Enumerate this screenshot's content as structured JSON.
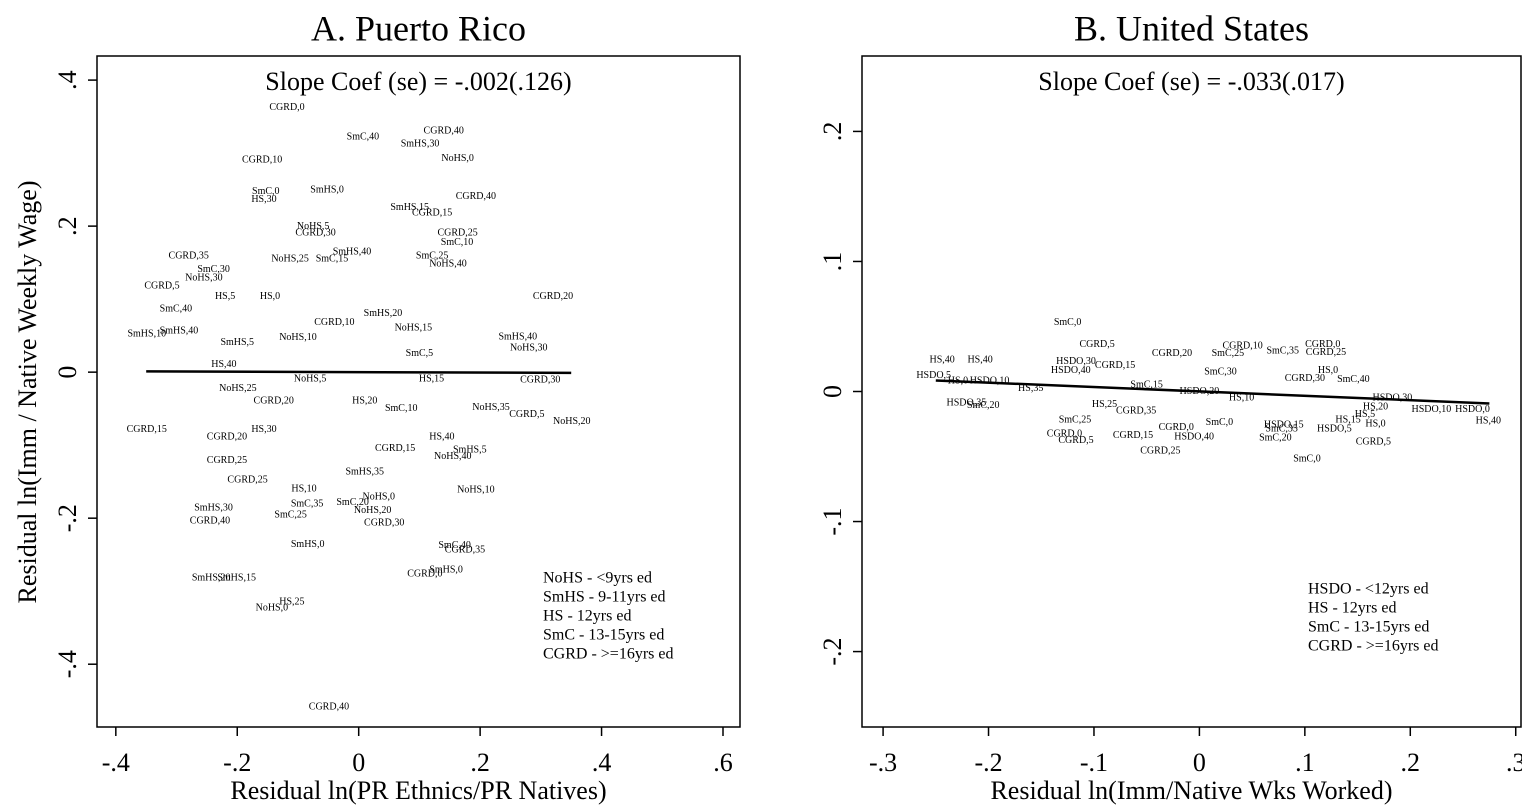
{
  "chart_data": [
    {
      "type": "scatter",
      "title": "A. Puerto Rico",
      "annotation": "Slope Coef (se) = -.002(.126)",
      "xlabel": "Residual ln(PR Ethnics/PR Natives)",
      "ylabel": "Residual ln(Imm / Native Weekly Wage)",
      "xlim": [
        -0.431,
        0.628
      ],
      "ylim": [
        -0.486,
        0.433
      ],
      "xticks": [
        {
          "value": -0.4,
          "label": "-.4"
        },
        {
          "value": -0.2,
          "label": "-.2"
        },
        0,
        {
          "value": 0.2,
          "label": ".2"
        },
        {
          "value": 0.4,
          "label": ".4"
        },
        {
          "value": 0.6,
          "label": ".6"
        }
      ],
      "yticks": [
        {
          "value": 0.4,
          "label": ".4"
        },
        {
          "value": 0.2,
          "label": ".2"
        },
        0,
        {
          "value": -0.2,
          "label": "-.2"
        },
        {
          "value": -0.4,
          "label": "-.4"
        }
      ],
      "labels": [
        "CGRD,0",
        "SmC,40",
        "CGRD,40",
        "SmHS,30",
        "NoHS,0",
        "CGRD,10",
        "SmC,0",
        "HS,30",
        "SmHS,0",
        "CGRD,40",
        "SmHS,15",
        "CGRD,15",
        "NoHS,5",
        "CGRD,30",
        "CGRD,25",
        "SmC,10",
        "CGRD,35",
        "SmHS,40",
        "SmC,25",
        "NoHS,40",
        "NoHS,25",
        "SmC,15",
        "SmC,30",
        "NoHS,30",
        "CGRD,5",
        "HS,5",
        "HS,0",
        "CGRD,20",
        "SmC,40",
        "SmHS,40",
        "SmHS,10",
        "SmHS,40",
        "NoHS,30",
        "CGRD,30",
        "NoHS,35",
        "CGRD,5",
        "NoHS,20",
        "CGRD,15",
        "CGRD,20",
        "HS,30",
        "HS,40",
        "SmHS,5",
        "NoHS,40",
        "CGRD,25",
        "CGRD,25",
        "HS,10",
        "NoHS,10",
        "SmC,35",
        "SmC,20",
        "NoHS,0",
        "SmHS,30",
        "CGRD,40",
        "SmC,25",
        "NoHS,20",
        "CGRD,30",
        "SmHS,0",
        "SmC,40",
        "CGRD,35",
        "CGRD,0",
        "SmHS,0",
        "SmHS,15",
        "SmHS,20",
        "HS,25",
        "NoHS,0",
        "CGRD,40",
        "HS,40",
        "NoHS,25",
        "NoHS,10",
        "SmHS,5",
        "CGRD,10",
        "SmHS,20",
        "NoHS,15",
        "SmC,10",
        "HS,20",
        "NoHS,5",
        "CGRD,15",
        "SmHS,35",
        "HS,15",
        "SmC,5",
        "CGRD,20"
      ],
      "x": [
        -0.118,
        0.007,
        0.14,
        0.101,
        0.163,
        -0.159,
        -0.153,
        -0.156,
        -0.052,
        0.193,
        0.084,
        0.121,
        -0.075,
        -0.071,
        0.163,
        0.162,
        -0.28,
        -0.011,
        0.121,
        0.147,
        -0.113,
        -0.044,
        -0.239,
        -0.255,
        -0.324,
        -0.22,
        -0.146,
        0.32,
        -0.301,
        -0.296,
        -0.349,
        0.262,
        0.28,
        0.299,
        0.218,
        0.277,
        0.351,
        -0.349,
        -0.217,
        -0.156,
        0.137,
        0.183,
        0.155,
        -0.217,
        -0.183,
        -0.09,
        0.193,
        -0.085,
        -0.01,
        0.033,
        -0.239,
        -0.245,
        -0.112,
        0.023,
        0.042,
        -0.084,
        0.158,
        0.175,
        0.109,
        0.144,
        -0.201,
        -0.243,
        -0.11,
        -0.143,
        -0.049,
        -0.222,
        -0.199,
        -0.1,
        -0.2,
        -0.04,
        0.04,
        0.09,
        0.07,
        0.01,
        -0.08,
        0.06,
        0.01,
        0.12,
        0.1,
        -0.14
      ],
      "y": [
        0.362,
        0.322,
        0.33,
        0.312,
        0.292,
        0.29,
        0.247,
        0.236,
        0.249,
        0.24,
        0.225,
        0.218,
        0.199,
        0.19,
        0.19,
        0.177,
        0.159,
        0.164,
        0.159,
        0.148,
        0.155,
        0.155,
        0.14,
        0.129,
        0.118,
        0.103,
        0.103,
        0.103,
        0.086,
        0.056,
        0.052,
        0.048,
        0.033,
        -0.011,
        -0.049,
        -0.058,
        -0.068,
        -0.079,
        -0.089,
        -0.079,
        -0.089,
        -0.107,
        -0.116,
        -0.121,
        -0.148,
        -0.16,
        -0.162,
        -0.181,
        -0.179,
        -0.171,
        -0.186,
        -0.204,
        -0.196,
        -0.19,
        -0.207,
        -0.236,
        -0.238,
        -0.244,
        -0.277,
        -0.271,
        -0.282,
        -0.282,
        -0.315,
        -0.323,
        -0.459,
        0.01,
        -0.023,
        0.047,
        0.04,
        0.068,
        0.08,
        0.06,
        -0.05,
        -0.04,
        -0.01,
        -0.105,
        -0.137,
        -0.01,
        0.025,
        -0.04
      ],
      "fit": {
        "x": [
          -0.35,
          0.35
        ],
        "y": [
          0.001,
          -0.001
        ]
      },
      "legend_text": [
        "NoHS - <9yrs ed",
        "SmHS - 9-11yrs ed",
        "HS - 12yrs ed",
        "SmC - 13-15yrs ed",
        "CGRD - >=16yrs ed"
      ]
    },
    {
      "type": "scatter",
      "title": "B. United States",
      "annotation": "Slope Coef (se) = -.033(.017)",
      "xlabel": "Residual ln(Imm/Native Wks Worked)",
      "xlim": [
        -0.32,
        0.305
      ],
      "ylim": [
        -0.258,
        0.258
      ],
      "xticks": [
        {
          "value": -0.3,
          "label": "-.3"
        },
        {
          "value": -0.2,
          "label": "-.2"
        },
        {
          "value": -0.1,
          "label": "-.1"
        },
        0,
        {
          "value": 0.1,
          "label": ".1"
        },
        {
          "value": 0.2,
          "label": ".2"
        },
        {
          "value": 0.3,
          "label": ".3"
        }
      ],
      "yticks": [
        {
          "value": 0.2,
          "label": ".2"
        },
        {
          "value": 0.1,
          "label": ".1"
        },
        0,
        {
          "value": -0.1,
          "label": "-.1"
        },
        {
          "value": -0.2,
          "label": "-.2"
        }
      ],
      "labels": [
        "SmC,0",
        "HS,40",
        "HS,40",
        "HSDO,5",
        "HSDO,35",
        "CGRD,5",
        "CGRD,10",
        "CGRD,20",
        "SmC,35",
        "SmC,25",
        "CGRD,0",
        "CGRD,25",
        "HSDO,30",
        "HS,0",
        "SmC,40",
        "HSDO,30",
        "HSDO,10",
        "HSDO,0",
        "HS,40",
        "HS,20",
        "HS,0",
        "HS,15",
        "HS,5",
        "HSDO,15",
        "SmC,35",
        "HSDO,5",
        "CGRD,5",
        "SmC,20",
        "SmC,0",
        "CGRD,0",
        "CGRD,5",
        "CGRD,15",
        "CGRD,0",
        "HSDO,40",
        "CGRD,25",
        "SmC,25",
        "SmC,0",
        "HSDO,40",
        "SmC,20",
        "HS,0",
        "HSDO,10",
        "CGRD,15",
        "HS,35",
        "SmC,15",
        "HSDO,20",
        "HS,25",
        "CGRD,30",
        "HS,10",
        "SmC,30",
        "CGRD,35"
      ],
      "x": [
        -0.125,
        -0.244,
        -0.208,
        -0.252,
        -0.221,
        -0.097,
        0.041,
        -0.026,
        0.079,
        0.027,
        0.117,
        0.12,
        -0.117,
        0.122,
        0.146,
        0.183,
        0.22,
        0.259,
        0.274,
        0.167,
        0.167,
        0.141,
        0.157,
        0.08,
        0.078,
        0.128,
        0.165,
        0.072,
        0.102,
        -0.128,
        -0.117,
        -0.063,
        -0.022,
        -0.005,
        -0.037,
        -0.118,
        0.019,
        -0.122,
        -0.205,
        -0.229,
        -0.199,
        -0.08,
        -0.16,
        -0.05,
        0.0,
        -0.09,
        0.1,
        0.04,
        0.02,
        -0.06
      ],
      "y": [
        0.053,
        0.024,
        0.024,
        0.012,
        -0.009,
        0.036,
        0.035,
        0.029,
        0.031,
        0.029,
        0.036,
        0.03,
        0.023,
        0.016,
        0.009,
        -0.005,
        -0.014,
        -0.014,
        -0.023,
        -0.012,
        -0.025,
        -0.022,
        -0.018,
        -0.026,
        -0.029,
        -0.029,
        -0.039,
        -0.036,
        -0.052,
        -0.033,
        -0.038,
        -0.034,
        -0.028,
        -0.035,
        -0.046,
        -0.022,
        -0.024,
        0.016,
        -0.011,
        0.008,
        0.008,
        0.02,
        0.002,
        0.005,
        0.0,
        -0.01,
        0.01,
        -0.005,
        0.015,
        -0.015
      ],
      "fit": {
        "x": [
          -0.25,
          0.275
        ],
        "y": [
          0.0085,
          -0.0092
        ]
      },
      "legend_text": [
        "HSDO - <12yrs ed",
        "HS - 12yrs ed",
        "SmC - 13-15yrs ed",
        "CGRD - >=16yrs ed"
      ]
    }
  ]
}
